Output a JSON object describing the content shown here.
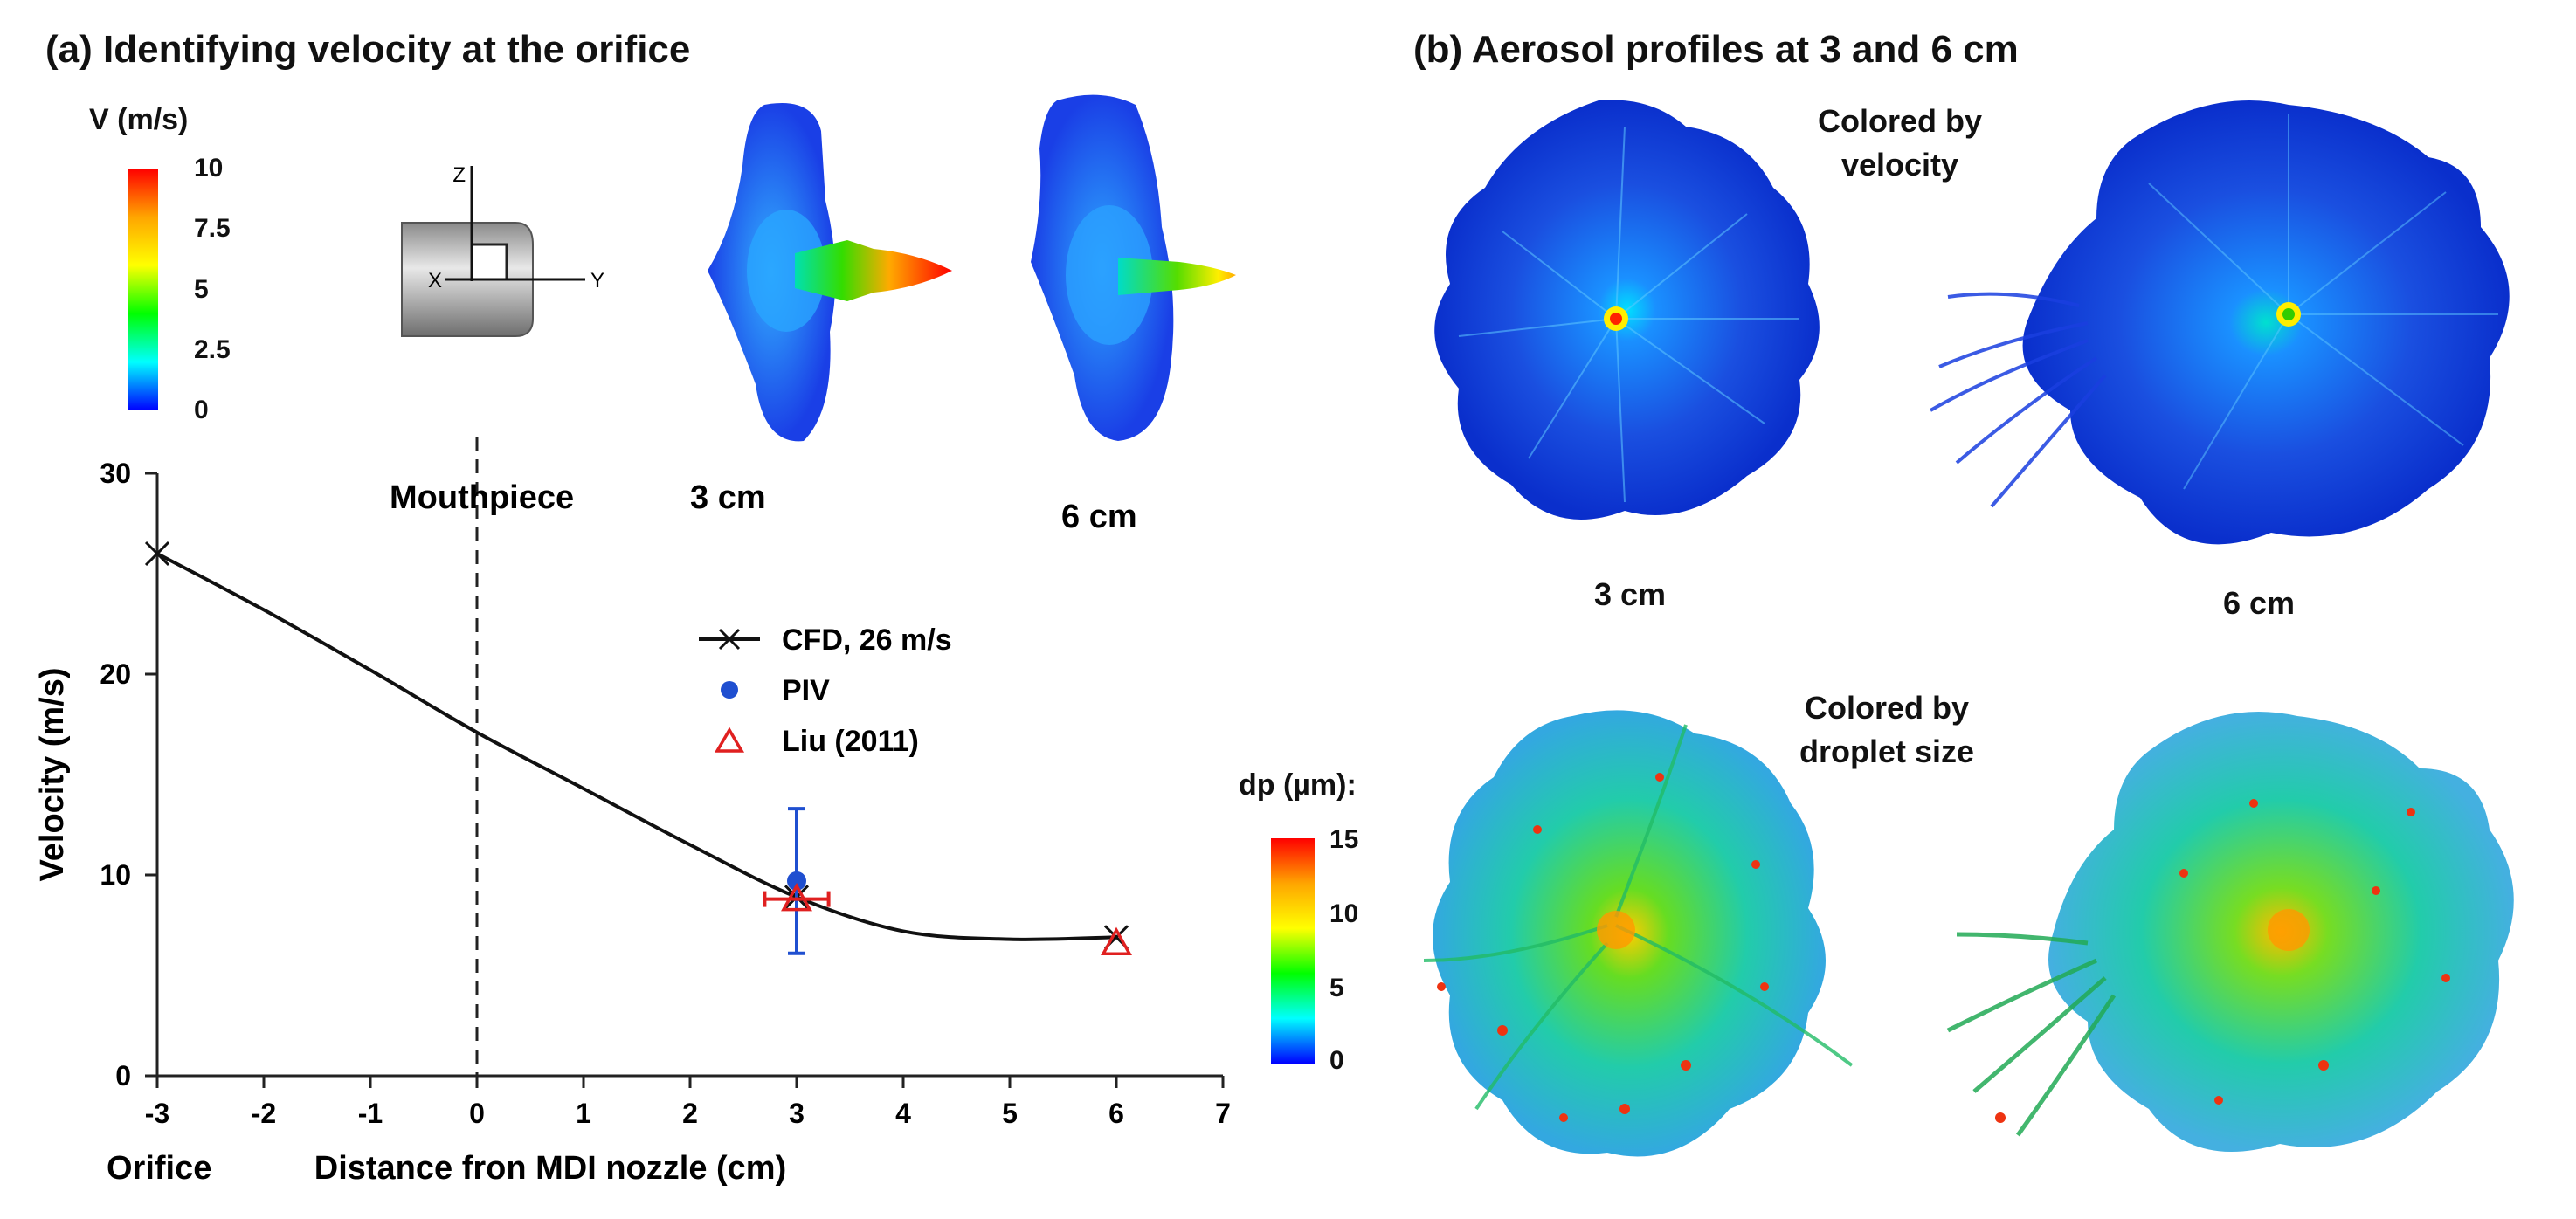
{
  "panel_a": {
    "title": "(a) Identifying velocity at the orifice",
    "colorbar": {
      "title": "V (m/s)",
      "ticks": [
        "10",
        "7.5",
        "5",
        "2.5",
        "0"
      ],
      "colors": [
        "#ff0000",
        "#ffa500",
        "#ffff00",
        "#00ff00",
        "#00ffff",
        "#0000ff"
      ]
    },
    "nozzle": {
      "axis_z": "Z",
      "axis_x": "X",
      "axis_y": "Y"
    },
    "plumes": {
      "label_3cm": "3 cm",
      "label_6cm": "6 cm"
    },
    "mouthpiece_label": "Mouthpiece",
    "orifice_label": "Orifice"
  },
  "panel_b": {
    "title": "(b) Aerosol profiles at 3 and 6 cm",
    "velocity_caption": [
      "Colored by",
      "velocity"
    ],
    "size_caption": [
      "Colored by",
      "droplet size"
    ],
    "label_3cm": "3 cm",
    "label_6cm": "6 cm",
    "colorbar": {
      "title": "dp (µm):",
      "ticks": [
        "15",
        "10",
        "5",
        "0"
      ]
    }
  },
  "chart_data": {
    "type": "line",
    "xlabel": "Distance fron MDI nozzle (cm)",
    "ylabel": "Velocity (m/s)",
    "xlim": [
      -3,
      7
    ],
    "ylim": [
      0,
      30
    ],
    "xticks": [
      "-3",
      "-2",
      "-1",
      "0",
      "1",
      "2",
      "3",
      "4",
      "5",
      "6",
      "7"
    ],
    "yticks": [
      "0",
      "10",
      "20",
      "30"
    ],
    "series": [
      {
        "name": "CFD, 26 m/s",
        "marker": "x",
        "x": [
          -3,
          -2,
          -1,
          0,
          1,
          2,
          3,
          4,
          5,
          6
        ],
        "y": [
          26,
          23.2,
          20.2,
          17.1,
          14.3,
          11.5,
          8.9,
          7.2,
          6.8,
          6.9
        ]
      },
      {
        "name": "PIV",
        "marker": "circle",
        "x": [
          3
        ],
        "y": [
          9.7
        ],
        "yerr": [
          3.6
        ]
      },
      {
        "name": "Liu (2011)",
        "marker": "triangle",
        "x": [
          3,
          6
        ],
        "y": [
          8.8,
          6.6
        ],
        "xerr": [
          0.3,
          0
        ]
      }
    ],
    "legend_position": "center-right"
  }
}
